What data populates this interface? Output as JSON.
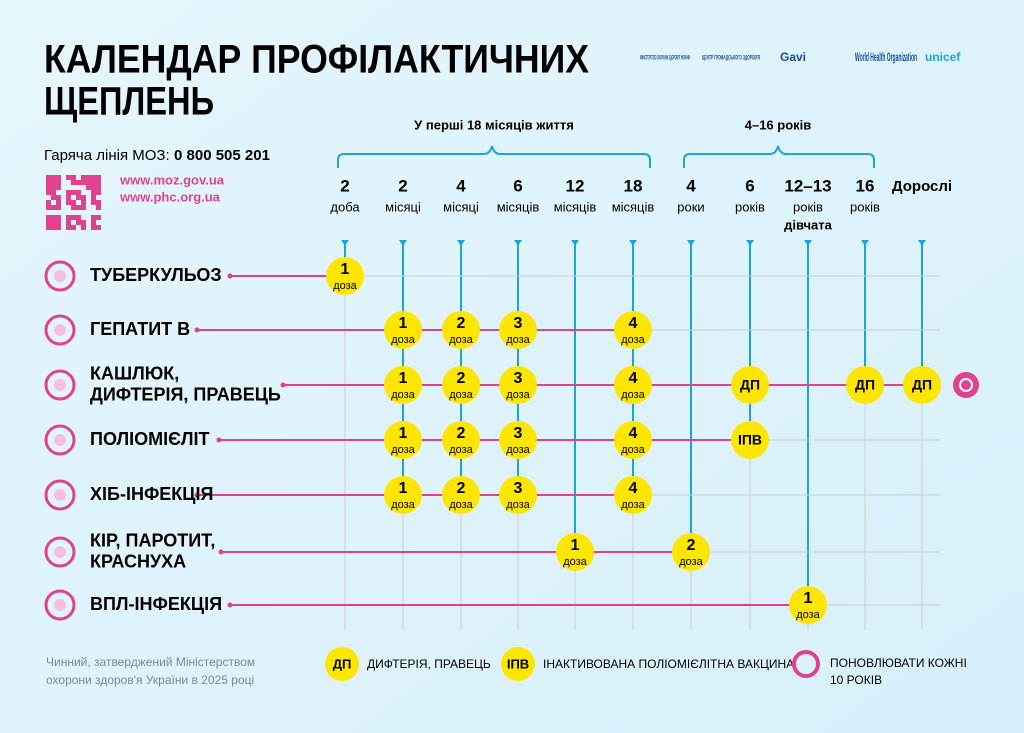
{
  "header": {
    "title": [
      "КАЛЕНДАР ПРОФІЛАКТИЧНИХ",
      "ЩЕПЛЕНЬ"
    ],
    "hotline_label": "Гаряча лінія МОЗ:",
    "hotline_number": "0 800 505 201",
    "links": [
      "www.moz.gov.ua",
      "www.phc.org.ua"
    ]
  },
  "logos": [
    "МІНІСТЕРСТВО ОХОРОНИ ЗДОРОВ'Я УКРАЇНИ",
    "ЦЕНТР ГРОМАДСЬКОГО ЗДОРОВ'Я",
    "Gavi",
    "World Health Organization",
    "unicef"
  ],
  "groups": [
    "У перші 18 місяців життя",
    "4–16 років"
  ],
  "ages": [
    {
      "num": "2",
      "unit": "доба"
    },
    {
      "num": "2",
      "unit": "місяці"
    },
    {
      "num": "4",
      "unit": "місяці"
    },
    {
      "num": "6",
      "unit": "місяців"
    },
    {
      "num": "12",
      "unit": "місяців"
    },
    {
      "num": "18",
      "unit": "місяців"
    },
    {
      "num": "4",
      "unit": "роки"
    },
    {
      "num": "6",
      "unit": "років"
    },
    {
      "num": "12–13",
      "unit": "років",
      "note": "дівчата"
    },
    {
      "num": "16",
      "unit": "років"
    },
    {
      "num": "Дорослі"
    }
  ],
  "rows": [
    {
      "name": [
        "ТУБЕРКУЛЬОЗ"
      ],
      "cells": [
        {
          "num": "1",
          "word": "доза"
        },
        null,
        null,
        null,
        null,
        null,
        null,
        null,
        null,
        null,
        null
      ]
    },
    {
      "name": [
        "ГЕПАТИТ В"
      ],
      "cells": [
        null,
        {
          "num": "1",
          "word": "доза"
        },
        {
          "num": "2",
          "word": "доза"
        },
        {
          "num": "3",
          "word": "доза"
        },
        null,
        {
          "num": "4",
          "word": "доза"
        },
        null,
        null,
        null,
        null,
        null
      ]
    },
    {
      "name": [
        "КАШЛЮК,",
        "ДИФТЕРІЯ, ПРАВЕЦЬ"
      ],
      "cells": [
        null,
        {
          "num": "1",
          "word": "доза"
        },
        {
          "num": "2",
          "word": "доза"
        },
        {
          "num": "3",
          "word": "доза"
        },
        null,
        {
          "num": "4",
          "word": "доза"
        },
        null,
        {
          "num": "ДП"
        },
        null,
        {
          "num": "ДП"
        },
        {
          "num": "ДП"
        }
      ]
    },
    {
      "name": [
        "ПОЛІОМІЄЛІТ"
      ],
      "cells": [
        null,
        {
          "num": "1",
          "word": "доза"
        },
        {
          "num": "2",
          "word": "доза"
        },
        {
          "num": "3",
          "word": "доза"
        },
        null,
        {
          "num": "4",
          "word": "доза"
        },
        null,
        {
          "num": "ІПВ"
        },
        null,
        null,
        null
      ]
    },
    {
      "name": [
        "ХІБ-ІНФЕКЦІЯ"
      ],
      "cells": [
        null,
        {
          "num": "1",
          "word": "доза"
        },
        {
          "num": "2",
          "word": "доза"
        },
        {
          "num": "3",
          "word": "доза"
        },
        null,
        {
          "num": "4",
          "word": "доза"
        },
        null,
        null,
        null,
        null,
        null
      ]
    },
    {
      "name": [
        "КІР, ПАРОТИТ,",
        "КРАСНУХА"
      ],
      "cells": [
        null,
        null,
        null,
        null,
        {
          "num": "1",
          "word": "доза"
        },
        null,
        {
          "num": "2",
          "word": "доза"
        },
        null,
        null,
        null,
        null
      ]
    },
    {
      "name": [
        "ВПЛ-ІНФЕКЦІЯ"
      ],
      "cells": [
        null,
        null,
        null,
        null,
        null,
        null,
        null,
        null,
        {
          "num": "1",
          "word": "доза"
        },
        null,
        null
      ]
    }
  ],
  "legend": [
    {
      "badge": "ДП",
      "text": "ДИФТЕРІЯ, ПРАВЕЦЬ"
    },
    {
      "badge": "ІПВ",
      "text": "ІНАКТИВОВАНА ПОЛІОМІЄЛІТНА ВАКЦИНА"
    },
    {
      "text": [
        "ПОНОВЛЮВАТИ КОЖНІ",
        "10 РОКІВ"
      ]
    }
  ],
  "footer": [
    "Чинний, затверджений Міністерством",
    "охорони здоров'я України в 2025 році"
  ]
}
